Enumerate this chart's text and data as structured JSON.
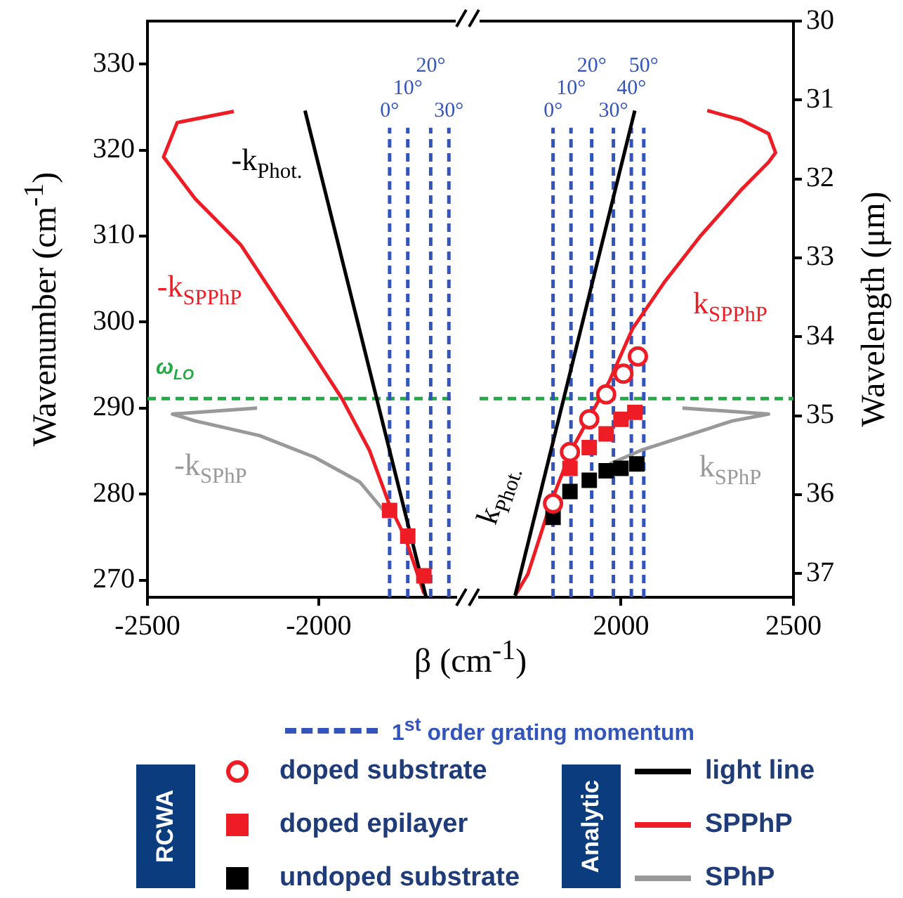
{
  "chart_data": [
    {
      "type": "line",
      "xlabel": "β (cm$^{-1}$)",
      "ylabel": "Wavenumber (cm$^{-1}$)",
      "xlim": [
        -2500,
        -1600
      ],
      "xticks": [
        -2500,
        -2000
      ],
      "ylim": [
        268,
        335
      ],
      "yticks": [
        270,
        280,
        290,
        300,
        310,
        320,
        330
      ],
      "series": [
        {
          "type": "line",
          "color": "#000000",
          "x": [
            -2040,
            -1687
          ],
          "values": [
            324.6,
            268.1
          ]
        },
        {
          "type": "line",
          "color": "#ee1c25",
          "x": [
            -2248,
            -2413,
            -2453,
            -2360,
            -2228,
            -2120,
            -2012,
            -1932,
            -1852,
            -1792,
            -1748,
            -1692
          ],
          "values": [
            324.5,
            323.2,
            319.2,
            314.3,
            309.0,
            302.5,
            296.0,
            291.1,
            285.1,
            278.6,
            275.0,
            268.4
          ]
        },
        {
          "type": "line",
          "color": "#999999",
          "x": [
            -2180,
            -2427,
            -2360,
            -2173,
            -2013,
            -1880,
            -1800
          ],
          "values": [
            290.0,
            289.3,
            288.5,
            286.8,
            284.3,
            281.4,
            277.6
          ]
        },
        {
          "type": "scatter",
          "color": "#ee1c25",
          "marker": "square",
          "x": [
            -1793,
            -1740,
            -1693
          ],
          "values": [
            278.1,
            275.1,
            270.5
          ]
        }
      ],
      "ref_lines": [
        {
          "axis": "y",
          "value": 291.1,
          "label": "ω$_{LO}$",
          "color": "#22aa44",
          "line_style": "dashed"
        },
        {
          "axis": "x",
          "value": -1793,
          "color": "#3355bb",
          "line_style": "dashed"
        },
        {
          "axis": "x",
          "value": -1740,
          "color": "#3355bb",
          "line_style": "dashed"
        },
        {
          "axis": "x",
          "value": -1673,
          "color": "#3355bb",
          "line_style": "dashed"
        },
        {
          "axis": "x",
          "value": -1620,
          "color": "#3355bb",
          "line_style": "dashed"
        }
      ],
      "annotations": [
        "-k$_{Phot.}$",
        "-k$_{SPPhP}$",
        "-k$_{SPhP}$",
        {
          "text": "0°",
          "x": -1793,
          "y": 322.6
        },
        {
          "text": "10°",
          "x": -1740,
          "y": 322.6
        },
        {
          "text": "20°",
          "x": -1673,
          "y": 322.6
        },
        {
          "text": "30°",
          "x": -1620,
          "y": 322.6
        }
      ]
    },
    {
      "type": "line",
      "y2label": "Wavelength (μm)",
      "xlim": [
        1590,
        2500
      ],
      "xticks": [
        2000,
        2500
      ],
      "ylim": [
        268,
        335
      ],
      "y2lim": [
        37.3,
        30
      ],
      "y2ticks": [
        30,
        31,
        32,
        33,
        34,
        35,
        36,
        37
      ],
      "legend": "bottom",
      "series": [
        {
          "name": "doped substrate",
          "type": "scatter",
          "color": "#ee1c25",
          "marker": "circle",
          "x": [
            1803,
            1852,
            1908,
            1957,
            2007,
            2049
          ],
          "values": [
            278.9,
            284.9,
            288.7,
            291.6,
            294.0,
            296.0
          ]
        },
        {
          "name": "doped epilayer",
          "type": "scatter",
          "color": "#ee1c25",
          "marker": "square",
          "x": [
            1852,
            1908,
            1957,
            2000,
            2040
          ],
          "values": [
            283.0,
            285.4,
            287.0,
            288.7,
            289.5
          ]
        },
        {
          "name": "undoped substrate",
          "type": "scatter",
          "color": "#000000",
          "marker": "square",
          "x": [
            1803,
            1852,
            1908,
            1957,
            2000,
            2046
          ],
          "values": [
            277.3,
            280.3,
            281.6,
            282.7,
            283.0,
            283.5
          ]
        },
        {
          "name": "light line",
          "type": "line",
          "color": "#000000",
          "x": [
            1693,
            2040
          ],
          "values": [
            268.2,
            324.6
          ]
        },
        {
          "name": "SPPhP",
          "type": "line",
          "color": "#ee1c25",
          "x": [
            1693,
            1730,
            1796,
            1856,
            1908,
            1967,
            2033,
            2125,
            2230,
            2349,
            2428,
            2448,
            2428,
            2349,
            2250
          ],
          "values": [
            268.2,
            270.7,
            278.9,
            285.1,
            288.9,
            293.2,
            299.2,
            304.6,
            310.0,
            315.4,
            318.6,
            319.7,
            321.9,
            323.5,
            324.6
          ]
        },
        {
          "name": "SPhP",
          "type": "line",
          "color": "#999999",
          "x": [
            2178,
            2428,
            2322,
            2191,
            2059,
            1967
          ],
          "values": [
            290.0,
            289.3,
            288.5,
            286.8,
            285.1,
            283.5
          ]
        }
      ],
      "ref_lines": [
        {
          "axis": "y",
          "value": 291.1,
          "color": "#22aa44",
          "line_style": "dashed"
        },
        {
          "axis": "x",
          "value": 1803,
          "color": "#3355bb",
          "line_style": "dashed"
        },
        {
          "axis": "x",
          "value": 1855,
          "color": "#3355bb",
          "line_style": "dashed"
        },
        {
          "axis": "x",
          "value": 1915,
          "color": "#3355bb",
          "line_style": "dashed"
        },
        {
          "axis": "x",
          "value": 1978,
          "color": "#3355bb",
          "line_style": "dashed"
        },
        {
          "axis": "x",
          "value": 2030,
          "color": "#3355bb",
          "line_style": "dashed"
        },
        {
          "axis": "x",
          "value": 2066,
          "color": "#3355bb",
          "line_style": "dashed"
        }
      ],
      "annotations": [
        "k$_{Phot.}$",
        "k$_{SPPhP}$",
        "k$_{SPhP}$",
        "RCWA",
        "Analytic",
        "1$^{st}$ order grating momentum",
        {
          "text": "0°",
          "x": 1803,
          "y": 322.6
        },
        {
          "text": "10°",
          "x": 1855,
          "y": 322.6
        },
        {
          "text": "20°",
          "x": 1915,
          "y": 322.6
        },
        {
          "text": "30°",
          "x": 1978,
          "y": 322.6
        },
        {
          "text": "40°",
          "x": 2030,
          "y": 322.6
        },
        {
          "text": "50°",
          "x": 2066,
          "y": 322.6
        }
      ]
    }
  ]
}
